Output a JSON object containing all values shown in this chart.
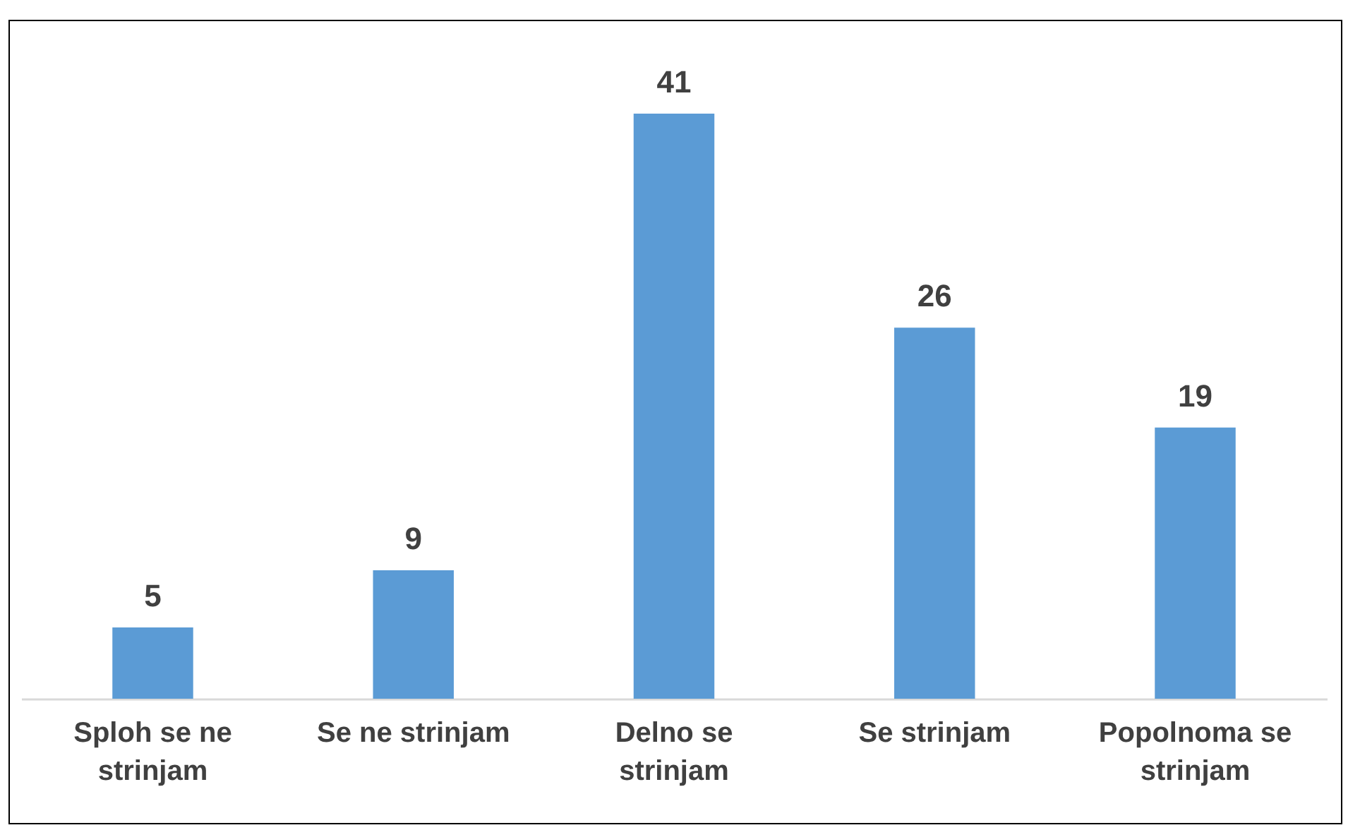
{
  "chart_data": {
    "type": "bar",
    "categories": [
      "Sploh se ne strinjam",
      "Se ne strinjam",
      "Delno se strinjam",
      "Se strinjam",
      "Popolnoma se strinjam"
    ],
    "values": [
      5,
      9,
      41,
      26,
      19
    ],
    "color": "#5b9bd5",
    "data_labels": true
  }
}
